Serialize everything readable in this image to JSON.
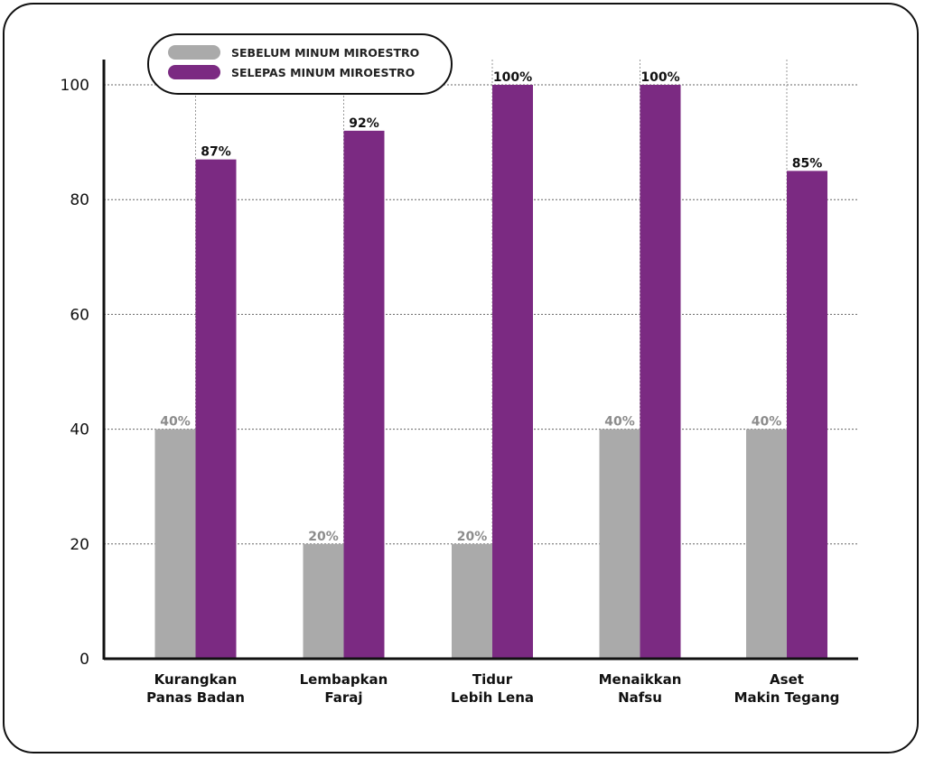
{
  "chart_data": {
    "type": "bar",
    "categories": [
      [
        "Kurangkan",
        "Panas Badan"
      ],
      [
        "Lembapkan",
        "Faraj"
      ],
      [
        "Tidur",
        "Lebih Lena"
      ],
      [
        "Menaikkan",
        "Nafsu"
      ],
      [
        "Aset",
        "Makin Tegang"
      ]
    ],
    "series": [
      {
        "name": "SEBELUM MINUM MIROESTRO",
        "values": [
          40,
          20,
          20,
          40,
          40
        ],
        "color": "#aaaaaa",
        "label_color": "#8c8c8c"
      },
      {
        "name": "SELEPAS MINUM MIROESTRO",
        "values": [
          87,
          92,
          100,
          100,
          85
        ],
        "color": "#7b2a82",
        "label_color": "#111111"
      }
    ],
    "value_labels": [
      [
        "40%",
        "20%",
        "20%",
        "40%",
        "40%"
      ],
      [
        "87%",
        "92%",
        "100%",
        "100%",
        "85%"
      ]
    ],
    "yticks": [
      0,
      20,
      40,
      60,
      80,
      100
    ],
    "ylim": [
      0,
      100
    ],
    "grid": true,
    "legend_position": "top-left",
    "title": "",
    "xlabel": "",
    "ylabel": ""
  }
}
